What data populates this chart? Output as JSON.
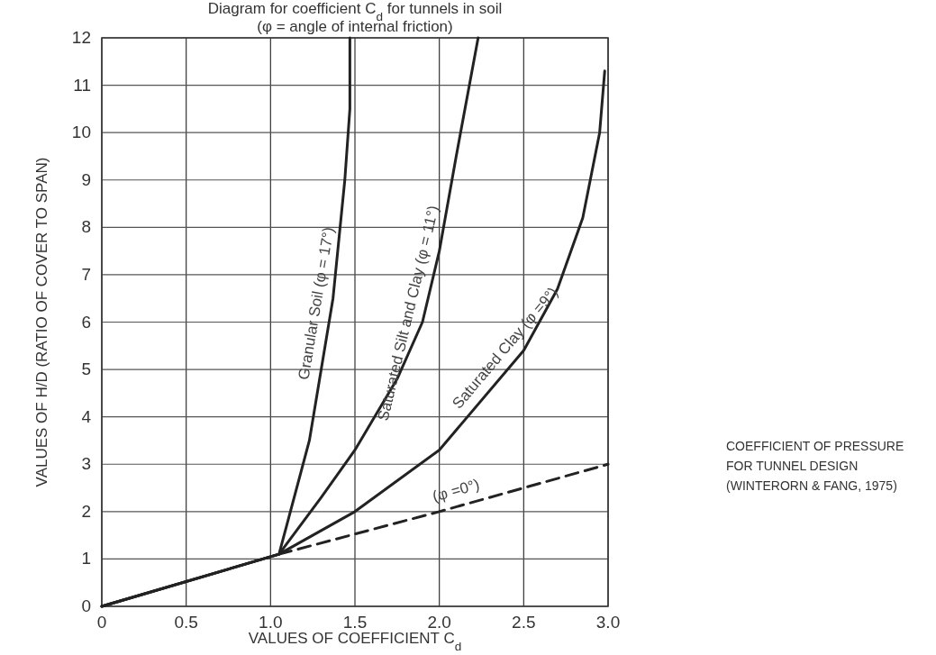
{
  "chart_data": {
    "type": "line",
    "title": "Diagram for coefficient C$_{d}$ for tunnels in soil",
    "subtitle": "(φ = angle of internal friction)",
    "xlabel": "VALUES OF COEFFICIENT C$_{d}$",
    "ylabel": "VALUES OF H/D (RATIO OF COVER TO SPAN)",
    "annotations": [
      "COEFFICIENT OF PRESSURE",
      "FOR TUNNEL DESIGN",
      "(WINTERORN & FANG, 1975)"
    ],
    "xlim": [
      0,
      3
    ],
    "ylim": [
      0,
      12
    ],
    "xticks": [
      0,
      0.5,
      {
        "value": 1,
        "label": "1.0"
      },
      1.5,
      {
        "value": 2,
        "label": "2.0"
      },
      2.5,
      {
        "value": 3,
        "label": "3.0"
      }
    ],
    "yticks": [
      0,
      1,
      2,
      3,
      4,
      5,
      6,
      7,
      8,
      9,
      10,
      11,
      12
    ],
    "grid": true,
    "marker": "none",
    "series": [
      {
        "name": "Granular Soil (φ = 17°)",
        "color": "#222222",
        "x": [
          0,
          1.05,
          1.23,
          1.37,
          1.44,
          1.47,
          1.47
        ],
        "values": [
          0,
          1.1,
          3.5,
          6.5,
          9,
          10.5,
          12
        ]
      },
      {
        "name": "Saturated Silt and Clay (φ = 11°)",
        "color": "#222222",
        "x": [
          0,
          1.05,
          1.3,
          1.5,
          1.75,
          1.9,
          2.0,
          2.1,
          2.23
        ],
        "values": [
          0,
          1.1,
          2.3,
          3.3,
          4.8,
          6,
          7.5,
          9.5,
          12
        ]
      },
      {
        "name": "Saturated Clay (φ =9°)",
        "color": "#222222",
        "x": [
          0,
          1.05,
          1.5,
          2.0,
          2.5,
          2.7,
          2.85,
          2.95,
          2.98
        ],
        "values": [
          0,
          1.1,
          2.0,
          3.3,
          5.4,
          6.7,
          8.2,
          10,
          11.3
        ]
      },
      {
        "name": "(φ =0°)",
        "color": "#222222",
        "line_style": "dashed",
        "x": [
          1.05,
          2.0,
          3.0
        ],
        "values": [
          1.1,
          2.0,
          3.0
        ]
      }
    ]
  }
}
